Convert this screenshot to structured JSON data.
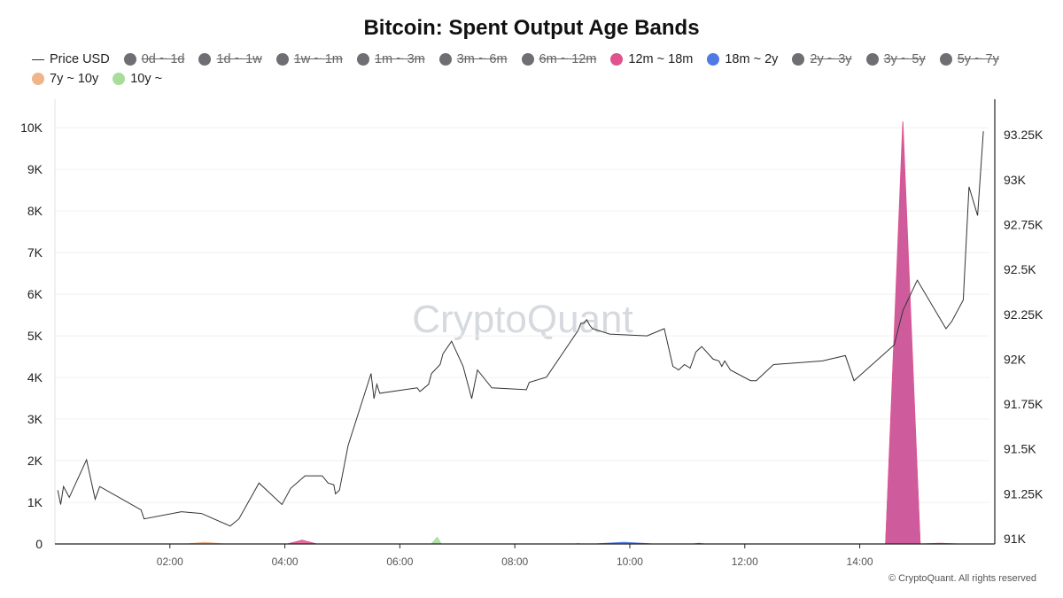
{
  "title": "Bitcoin: Spent Output Age Bands",
  "watermark": "CryptoQuant",
  "footer": "© CryptoQuant. All rights reserved",
  "legend": [
    {
      "label": "Price USD",
      "marker": "line",
      "color": "#333333",
      "hidden": false
    },
    {
      "label": "0d ~ 1d",
      "marker": "dot",
      "color": "#6e6e73",
      "hidden": true
    },
    {
      "label": "1d ~ 1w",
      "marker": "dot",
      "color": "#6e6e73",
      "hidden": true
    },
    {
      "label": "1w ~ 1m",
      "marker": "dot",
      "color": "#6e6e73",
      "hidden": true
    },
    {
      "label": "1m ~ 3m",
      "marker": "dot",
      "color": "#6e6e73",
      "hidden": true
    },
    {
      "label": "3m ~ 6m",
      "marker": "dot",
      "color": "#6e6e73",
      "hidden": true
    },
    {
      "label": "6m ~ 12m",
      "marker": "dot",
      "color": "#6e6e73",
      "hidden": true
    },
    {
      "label": "12m ~ 18m",
      "marker": "dot",
      "color": "#e0538f",
      "hidden": false
    },
    {
      "label": "18m ~ 2y",
      "marker": "dot",
      "color": "#4f7be3",
      "hidden": false
    },
    {
      "label": "2y ~ 3y",
      "marker": "dot",
      "color": "#6e6e73",
      "hidden": true
    },
    {
      "label": "3y ~ 5y",
      "marker": "dot",
      "color": "#6e6e73",
      "hidden": true
    },
    {
      "label": "5y ~ 7y",
      "marker": "dot",
      "color": "#6e6e73",
      "hidden": true
    },
    {
      "label": "7y ~ 10y",
      "marker": "dot",
      "color": "#f0b48a",
      "hidden": false
    },
    {
      "label": "10y ~",
      "marker": "dot",
      "color": "#a7dc9a",
      "hidden": false
    }
  ],
  "chart_data": {
    "type": "area",
    "x_ticks": [
      "02:00",
      "04:00",
      "06:00",
      "08:00",
      "10:00",
      "12:00",
      "14:00"
    ],
    "x_tick_hours": [
      2,
      4,
      6,
      8,
      10,
      12,
      14
    ],
    "xlim_hours": [
      0,
      15.85
    ],
    "y_left": {
      "ticks": [
        "0",
        "1K",
        "2K",
        "3K",
        "4K",
        "5K",
        "6K",
        "7K",
        "8K",
        "9K",
        "10K"
      ],
      "tick_values": [
        0,
        1000,
        2000,
        3000,
        4000,
        5000,
        6000,
        7000,
        8000,
        9000,
        10000
      ],
      "ylim": [
        0,
        10600
      ]
    },
    "y_right": {
      "ticks": [
        "91K",
        "91.25K",
        "91.5K",
        "91.75K",
        "92K",
        "92.25K",
        "92.5K",
        "92.75K",
        "93K",
        "93.25K"
      ],
      "tick_values": [
        91000,
        91250,
        91500,
        91750,
        92000,
        92250,
        92500,
        92750,
        93000,
        93250
      ],
      "ylim": [
        91000,
        93500
      ]
    },
    "grid": true,
    "series": [
      {
        "name": "Price USD",
        "kind": "line",
        "axis": "right",
        "color": "#333333",
        "points": [
          [
            0.05,
            91270
          ],
          [
            0.1,
            91190
          ],
          [
            0.15,
            91290
          ],
          [
            0.25,
            91230
          ],
          [
            0.55,
            91440
          ],
          [
            0.7,
            91220
          ],
          [
            0.78,
            91290
          ],
          [
            1.5,
            91160
          ],
          [
            1.55,
            91110
          ],
          [
            2.2,
            91150
          ],
          [
            2.55,
            91140
          ],
          [
            3.05,
            91070
          ],
          [
            3.2,
            91110
          ],
          [
            3.55,
            91310
          ],
          [
            3.95,
            91190
          ],
          [
            4.1,
            91280
          ],
          [
            4.35,
            91350
          ],
          [
            4.65,
            91350
          ],
          [
            4.75,
            91310
          ],
          [
            4.85,
            91300
          ],
          [
            4.88,
            91250
          ],
          [
            4.95,
            91270
          ],
          [
            5.1,
            91520
          ],
          [
            5.5,
            91920
          ],
          [
            5.55,
            91780
          ],
          [
            5.6,
            91860
          ],
          [
            5.65,
            91810
          ],
          [
            6.3,
            91840
          ],
          [
            6.35,
            91820
          ],
          [
            6.5,
            91860
          ],
          [
            6.55,
            91920
          ],
          [
            6.7,
            91970
          ],
          [
            6.75,
            92030
          ],
          [
            6.9,
            92100
          ],
          [
            7.1,
            91960
          ],
          [
            7.25,
            91780
          ],
          [
            7.35,
            91940
          ],
          [
            7.6,
            91840
          ],
          [
            8.2,
            91830
          ],
          [
            8.25,
            91870
          ],
          [
            8.55,
            91900
          ],
          [
            9.1,
            92160
          ],
          [
            9.15,
            92200
          ],
          [
            9.2,
            92200
          ],
          [
            9.25,
            92220
          ],
          [
            9.3,
            92190
          ],
          [
            9.35,
            92170
          ],
          [
            9.65,
            92140
          ],
          [
            10.3,
            92130
          ],
          [
            10.6,
            92170
          ],
          [
            10.75,
            91960
          ],
          [
            10.8,
            91950
          ],
          [
            10.85,
            91940
          ],
          [
            10.95,
            91970
          ],
          [
            11.05,
            91950
          ],
          [
            11.15,
            92040
          ],
          [
            11.25,
            92070
          ],
          [
            11.45,
            92000
          ],
          [
            11.55,
            91990
          ],
          [
            11.6,
            91960
          ],
          [
            11.65,
            91990
          ],
          [
            11.75,
            91940
          ],
          [
            12.1,
            91880
          ],
          [
            12.2,
            91880
          ],
          [
            12.5,
            91970
          ],
          [
            13.35,
            91990
          ],
          [
            13.75,
            92020
          ],
          [
            13.9,
            91880
          ],
          [
            14.6,
            92080
          ],
          [
            14.75,
            92270
          ],
          [
            15.0,
            92440
          ],
          [
            15.5,
            92170
          ],
          [
            15.6,
            92210
          ],
          [
            15.8,
            92330
          ],
          [
            15.9,
            92960
          ],
          [
            16.05,
            92800
          ],
          [
            16.15,
            93270
          ]
        ]
      },
      {
        "name": "18m ~ 2y",
        "kind": "area",
        "axis": "left",
        "color": "#4f7be3",
        "points": [
          [
            0,
            0
          ],
          [
            9.4,
            0
          ],
          [
            9.9,
            40
          ],
          [
            10.4,
            0
          ],
          [
            14.45,
            0
          ],
          [
            14.75,
            9800
          ],
          [
            15.05,
            0
          ],
          [
            16.15,
            0
          ]
        ]
      },
      {
        "name": "12m ~ 18m",
        "kind": "area",
        "axis": "left",
        "color": "#e0538f",
        "points": [
          [
            0,
            0
          ],
          [
            4.05,
            0
          ],
          [
            4.3,
            90
          ],
          [
            4.55,
            0
          ],
          [
            11.1,
            0
          ],
          [
            11.2,
            15
          ],
          [
            11.3,
            0
          ],
          [
            14.45,
            0
          ],
          [
            14.75,
            10150
          ],
          [
            15.05,
            0
          ],
          [
            15.4,
            15
          ],
          [
            15.7,
            0
          ],
          [
            16.15,
            0
          ]
        ]
      },
      {
        "name": "7y ~ 10y",
        "kind": "area",
        "axis": "left",
        "color": "#f0b48a",
        "points": [
          [
            0,
            0
          ],
          [
            2.3,
            0
          ],
          [
            2.6,
            40
          ],
          [
            2.95,
            0
          ],
          [
            16.15,
            0
          ]
        ]
      },
      {
        "name": "10y ~",
        "kind": "area",
        "axis": "left",
        "color": "#a7dc9a",
        "points": [
          [
            0,
            0
          ],
          [
            6.55,
            0
          ],
          [
            6.65,
            160
          ],
          [
            6.72,
            0
          ],
          [
            9.05,
            0
          ],
          [
            9.1,
            15
          ],
          [
            9.15,
            0
          ],
          [
            16.15,
            0
          ]
        ]
      }
    ]
  }
}
